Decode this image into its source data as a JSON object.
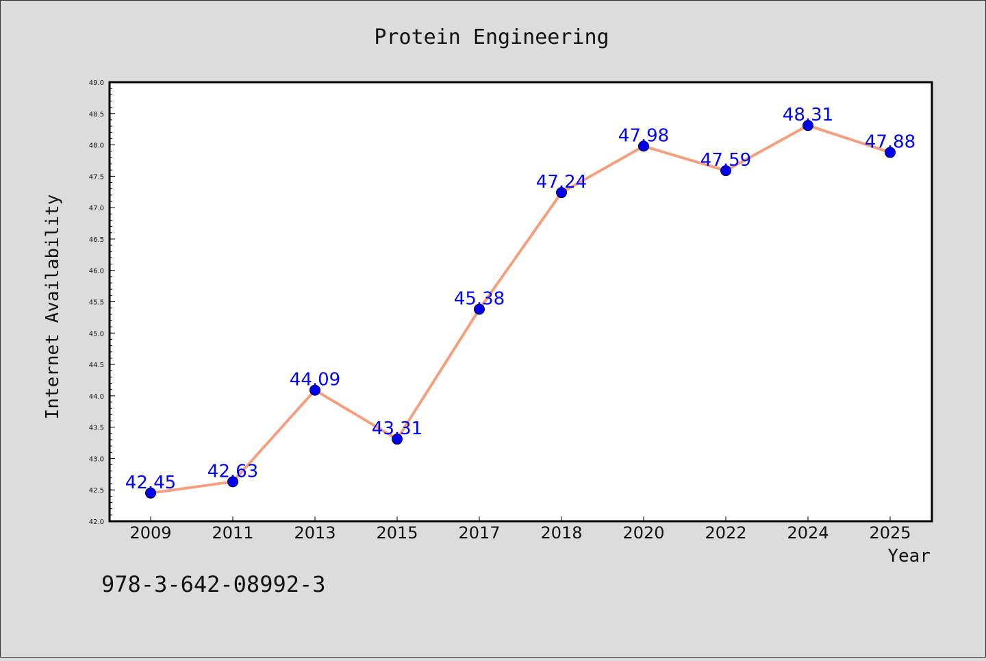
{
  "chart_data": {
    "type": "line",
    "title": "Protein Engineering",
    "xlabel": "Year",
    "ylabel": "Internet Availability",
    "categories": [
      "2009",
      "2011",
      "2013",
      "2015",
      "2017",
      "2018",
      "2020",
      "2022",
      "2024",
      "2025"
    ],
    "values": [
      42.45,
      42.63,
      44.09,
      43.31,
      45.38,
      47.24,
      47.98,
      47.59,
      48.31,
      47.88
    ],
    "data_labels": [
      "42.45",
      "42.63",
      "44.09",
      "43.31",
      "45.38",
      "47.24",
      "47.98",
      "47.59",
      "48.31",
      "47.88"
    ],
    "ylim": [
      42.0,
      49.0
    ],
    "yticks": [
      "42.0",
      "42.5",
      "43.0",
      "43.5",
      "44.0",
      "44.5",
      "45.0",
      "45.5",
      "46.0",
      "46.5",
      "47.0",
      "47.5",
      "48.0",
      "48.5",
      "49.0"
    ],
    "grid": false,
    "legend": "none",
    "line_color": "#f4a07f",
    "marker_color": "#0000ee",
    "label_color": "#0000ff"
  },
  "footnote": "978-3-642-08992-3"
}
